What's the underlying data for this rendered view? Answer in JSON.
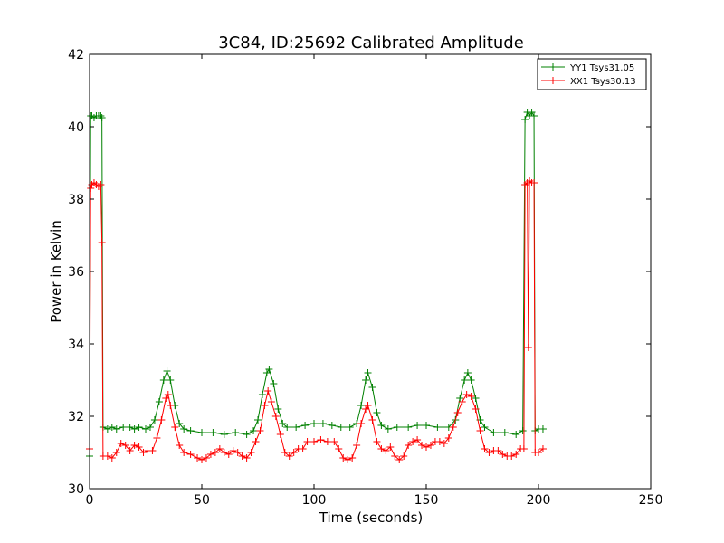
{
  "chart_data": {
    "type": "line",
    "title": "3C84, ID:25692 Calibrated Amplitude",
    "xlabel": "Time (seconds)",
    "ylabel": "Power in Kelvin",
    "xlim": [
      0,
      250
    ],
    "ylim": [
      30,
      42
    ],
    "xticks": [
      "0",
      "50",
      "100",
      "150",
      "200",
      "250"
    ],
    "yticks": [
      "30",
      "32",
      "34",
      "36",
      "38",
      "40",
      "42"
    ],
    "grid": false,
    "legend_position": "top-right",
    "marker": "plus",
    "series": [
      {
        "name": "YY1 Tsys31.05",
        "color": "#008000",
        "points": [
          [
            0,
            30.9
          ],
          [
            0.5,
            40.3
          ],
          [
            1,
            40.3
          ],
          [
            2,
            40.25
          ],
          [
            3,
            40.3
          ],
          [
            4,
            40.3
          ],
          [
            5,
            40.3
          ],
          [
            5.5,
            40.25
          ],
          [
            6,
            31.7
          ],
          [
            8,
            31.65
          ],
          [
            10,
            31.7
          ],
          [
            12,
            31.65
          ],
          [
            15,
            31.7
          ],
          [
            18,
            31.7
          ],
          [
            20,
            31.65
          ],
          [
            22,
            31.7
          ],
          [
            25,
            31.65
          ],
          [
            27,
            31.7
          ],
          [
            29,
            31.9
          ],
          [
            31,
            32.4
          ],
          [
            33,
            33.0
          ],
          [
            34.5,
            33.25
          ],
          [
            36,
            33.0
          ],
          [
            38,
            32.3
          ],
          [
            40,
            31.8
          ],
          [
            42,
            31.65
          ],
          [
            45,
            31.6
          ],
          [
            50,
            31.55
          ],
          [
            55,
            31.55
          ],
          [
            60,
            31.5
          ],
          [
            65,
            31.55
          ],
          [
            70,
            31.5
          ],
          [
            73,
            31.6
          ],
          [
            75,
            31.9
          ],
          [
            77,
            32.6
          ],
          [
            79,
            33.2
          ],
          [
            80,
            33.3
          ],
          [
            82,
            32.9
          ],
          [
            84,
            32.2
          ],
          [
            86,
            31.8
          ],
          [
            88,
            31.7
          ],
          [
            92,
            31.7
          ],
          [
            96,
            31.75
          ],
          [
            100,
            31.8
          ],
          [
            104,
            31.8
          ],
          [
            108,
            31.75
          ],
          [
            112,
            31.7
          ],
          [
            116,
            31.7
          ],
          [
            119,
            31.8
          ],
          [
            121,
            32.3
          ],
          [
            123,
            33.0
          ],
          [
            124,
            33.2
          ],
          [
            126,
            32.8
          ],
          [
            128,
            32.1
          ],
          [
            130,
            31.75
          ],
          [
            133,
            31.65
          ],
          [
            137,
            31.7
          ],
          [
            142,
            31.7
          ],
          [
            146,
            31.75
          ],
          [
            150,
            31.75
          ],
          [
            155,
            31.7
          ],
          [
            160,
            31.7
          ],
          [
            163,
            31.9
          ],
          [
            165,
            32.5
          ],
          [
            167,
            33.0
          ],
          [
            168.5,
            33.2
          ],
          [
            170,
            33.0
          ],
          [
            172,
            32.5
          ],
          [
            174,
            31.9
          ],
          [
            176,
            31.7
          ],
          [
            180,
            31.55
          ],
          [
            185,
            31.55
          ],
          [
            190,
            31.5
          ],
          [
            193,
            31.6
          ],
          [
            194,
            40.2
          ],
          [
            195,
            40.4
          ],
          [
            196,
            40.3
          ],
          [
            197,
            40.4
          ],
          [
            198,
            40.3
          ],
          [
            198.5,
            31.6
          ],
          [
            200,
            31.65
          ],
          [
            202,
            31.65
          ]
        ]
      },
      {
        "name": "XX1 Tsys30.13",
        "color": "#ff0000",
        "points": [
          [
            0,
            31.1
          ],
          [
            0.5,
            38.3
          ],
          [
            1,
            38.4
          ],
          [
            2,
            38.45
          ],
          [
            3,
            38.4
          ],
          [
            4,
            38.35
          ],
          [
            5,
            38.4
          ],
          [
            5.5,
            36.8
          ],
          [
            6,
            30.9
          ],
          [
            8,
            30.9
          ],
          [
            10,
            30.85
          ],
          [
            12,
            31.0
          ],
          [
            14,
            31.25
          ],
          [
            16,
            31.2
          ],
          [
            18,
            31.05
          ],
          [
            20,
            31.2
          ],
          [
            22,
            31.15
          ],
          [
            24,
            31.0
          ],
          [
            26,
            31.05
          ],
          [
            28,
            31.05
          ],
          [
            30,
            31.4
          ],
          [
            32,
            31.9
          ],
          [
            34,
            32.5
          ],
          [
            35,
            32.6
          ],
          [
            36,
            32.3
          ],
          [
            38,
            31.7
          ],
          [
            40,
            31.2
          ],
          [
            42,
            31.0
          ],
          [
            45,
            30.95
          ],
          [
            48,
            30.85
          ],
          [
            50,
            30.8
          ],
          [
            52,
            30.85
          ],
          [
            54,
            30.95
          ],
          [
            56,
            31.0
          ],
          [
            58,
            31.1
          ],
          [
            60,
            31.0
          ],
          [
            62,
            30.95
          ],
          [
            64,
            31.05
          ],
          [
            66,
            31.0
          ],
          [
            68,
            30.9
          ],
          [
            70,
            30.85
          ],
          [
            72,
            31.0
          ],
          [
            74,
            31.3
          ],
          [
            76,
            31.6
          ],
          [
            78,
            32.3
          ],
          [
            79.5,
            32.7
          ],
          [
            81,
            32.4
          ],
          [
            83,
            32.0
          ],
          [
            85,
            31.5
          ],
          [
            87,
            31.0
          ],
          [
            89,
            30.9
          ],
          [
            91,
            31.0
          ],
          [
            93,
            31.1
          ],
          [
            95,
            31.1
          ],
          [
            97,
            31.3
          ],
          [
            100,
            31.3
          ],
          [
            103,
            31.35
          ],
          [
            106,
            31.3
          ],
          [
            109,
            31.3
          ],
          [
            111,
            31.1
          ],
          [
            113,
            30.85
          ],
          [
            115,
            30.8
          ],
          [
            117,
            30.85
          ],
          [
            119,
            31.2
          ],
          [
            121,
            31.8
          ],
          [
            123,
            32.2
          ],
          [
            124,
            32.3
          ],
          [
            126,
            31.9
          ],
          [
            128,
            31.3
          ],
          [
            130,
            31.1
          ],
          [
            132,
            31.05
          ],
          [
            134,
            31.15
          ],
          [
            136,
            30.9
          ],
          [
            138,
            30.8
          ],
          [
            140,
            30.9
          ],
          [
            142,
            31.2
          ],
          [
            144,
            31.3
          ],
          [
            146,
            31.35
          ],
          [
            148,
            31.2
          ],
          [
            150,
            31.15
          ],
          [
            152,
            31.2
          ],
          [
            154,
            31.3
          ],
          [
            156,
            31.3
          ],
          [
            158,
            31.25
          ],
          [
            160,
            31.4
          ],
          [
            162,
            31.7
          ],
          [
            164,
            32.1
          ],
          [
            166,
            32.4
          ],
          [
            168,
            32.6
          ],
          [
            170,
            32.55
          ],
          [
            172,
            32.2
          ],
          [
            174,
            31.6
          ],
          [
            176,
            31.1
          ],
          [
            178,
            31.0
          ],
          [
            180,
            31.05
          ],
          [
            182,
            31.05
          ],
          [
            184,
            30.95
          ],
          [
            186,
            30.9
          ],
          [
            188,
            30.9
          ],
          [
            190,
            30.95
          ],
          [
            192,
            31.1
          ],
          [
            193.5,
            31.1
          ],
          [
            194,
            38.4
          ],
          [
            195,
            38.45
          ],
          [
            195.5,
            33.9
          ],
          [
            196,
            38.5
          ],
          [
            197,
            38.45
          ],
          [
            198,
            38.45
          ],
          [
            198.5,
            31.0
          ],
          [
            200,
            31.0
          ],
          [
            202,
            31.1
          ]
        ]
      }
    ]
  }
}
